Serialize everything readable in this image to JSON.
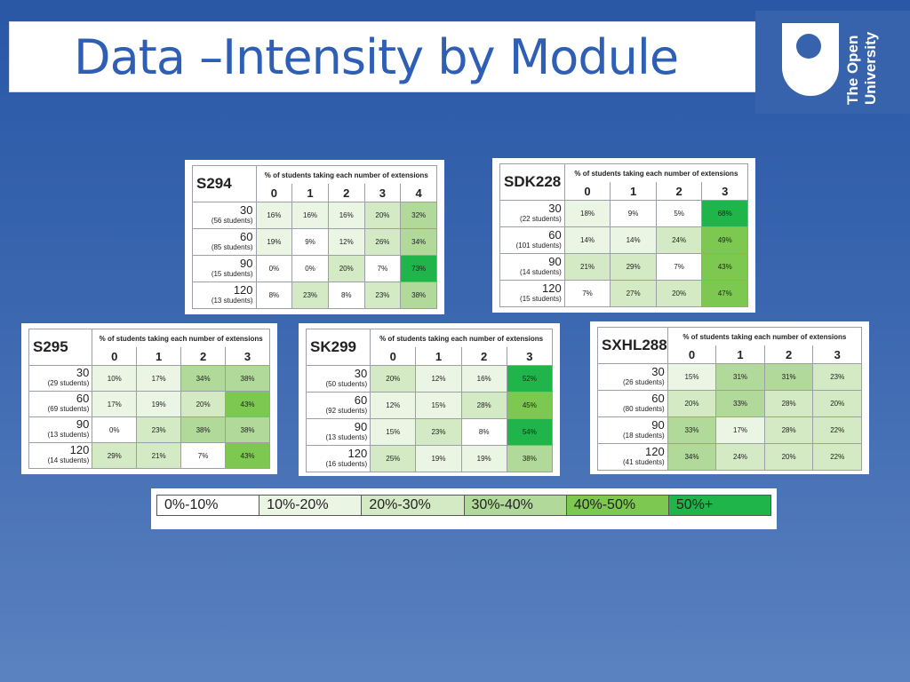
{
  "slide": {
    "title": "Data –Intensity by Module",
    "logo_lines": [
      "The Open",
      "University"
    ]
  },
  "legend": {
    "bins": [
      {
        "label": "0%-10%",
        "color": "#ffffff"
      },
      {
        "label": "10%-20%",
        "color": "#ebf5e3"
      },
      {
        "label": "20%-30%",
        "color": "#d3eac4"
      },
      {
        "label": "30%-40%",
        "color": "#b1d99a"
      },
      {
        "label": "40%-50%",
        "color": "#7cc850"
      },
      {
        "label": "50%+",
        "color": "#1fb54a"
      }
    ]
  },
  "chart_data": [
    {
      "type": "table",
      "module": "S294",
      "caption": "% of students taking each number of extensions",
      "columns": [
        "0",
        "1",
        "2",
        "3",
        "4"
      ],
      "rows": [
        {
          "label": "30",
          "students": "(56 students)",
          "values": [
            16,
            16,
            16,
            20,
            32
          ]
        },
        {
          "label": "60",
          "students": "(85 students)",
          "values": [
            19,
            9,
            12,
            26,
            34
          ]
        },
        {
          "label": "90",
          "students": "(15 students)",
          "values": [
            0,
            0,
            20,
            7,
            73
          ]
        },
        {
          "label": "120",
          "students": "(13 students)",
          "values": [
            8,
            23,
            8,
            23,
            38
          ]
        }
      ]
    },
    {
      "type": "table",
      "module": "SDK228",
      "caption": "% of students taking each number of extensions",
      "columns": [
        "0",
        "1",
        "2",
        "3"
      ],
      "rows": [
        {
          "label": "30",
          "students": "(22 students)",
          "values": [
            18,
            9,
            5,
            68
          ]
        },
        {
          "label": "60",
          "students": "(101 students)",
          "values": [
            14,
            14,
            24,
            49
          ]
        },
        {
          "label": "90",
          "students": "(14 students)",
          "values": [
            21,
            29,
            7,
            43
          ]
        },
        {
          "label": "120",
          "students": "(15 students)",
          "values": [
            7,
            27,
            20,
            47
          ]
        }
      ]
    },
    {
      "type": "table",
      "module": "S295",
      "caption": "% of students taking each number of extensions",
      "columns": [
        "0",
        "1",
        "2",
        "3"
      ],
      "rows": [
        {
          "label": "30",
          "students": "(29 students)",
          "values": [
            10,
            17,
            34,
            38
          ]
        },
        {
          "label": "60",
          "students": "(69 students)",
          "values": [
            17,
            19,
            20,
            43
          ]
        },
        {
          "label": "90",
          "students": "(13 students)",
          "values": [
            0,
            23,
            38,
            38
          ]
        },
        {
          "label": "120",
          "students": "(14 students)",
          "values": [
            29,
            21,
            7,
            43
          ]
        }
      ]
    },
    {
      "type": "table",
      "module": "SK299",
      "caption": "% of students taking each number of extensions",
      "columns": [
        "0",
        "1",
        "2",
        "3"
      ],
      "rows": [
        {
          "label": "30",
          "students": "(50 students)",
          "values": [
            20,
            12,
            16,
            52
          ]
        },
        {
          "label": "60",
          "students": "(92 students)",
          "values": [
            12,
            15,
            28,
            45
          ]
        },
        {
          "label": "90",
          "students": "(13 students)",
          "values": [
            15,
            23,
            8,
            54
          ]
        },
        {
          "label": "120",
          "students": "(16 students)",
          "values": [
            25,
            19,
            19,
            38
          ]
        }
      ]
    },
    {
      "type": "table",
      "module": "SXHL288",
      "caption": "% of students taking each number of extensions",
      "columns": [
        "0",
        "1",
        "2",
        "3"
      ],
      "rows": [
        {
          "label": "30",
          "students": "(26 students)",
          "values": [
            15,
            31,
            31,
            23
          ]
        },
        {
          "label": "60",
          "students": "(80 students)",
          "values": [
            20,
            33,
            28,
            20
          ]
        },
        {
          "label": "90",
          "students": "(18 students)",
          "values": [
            33,
            17,
            28,
            22
          ]
        },
        {
          "label": "120",
          "students": "(41 students)",
          "values": [
            34,
            24,
            20,
            22
          ]
        }
      ]
    }
  ]
}
